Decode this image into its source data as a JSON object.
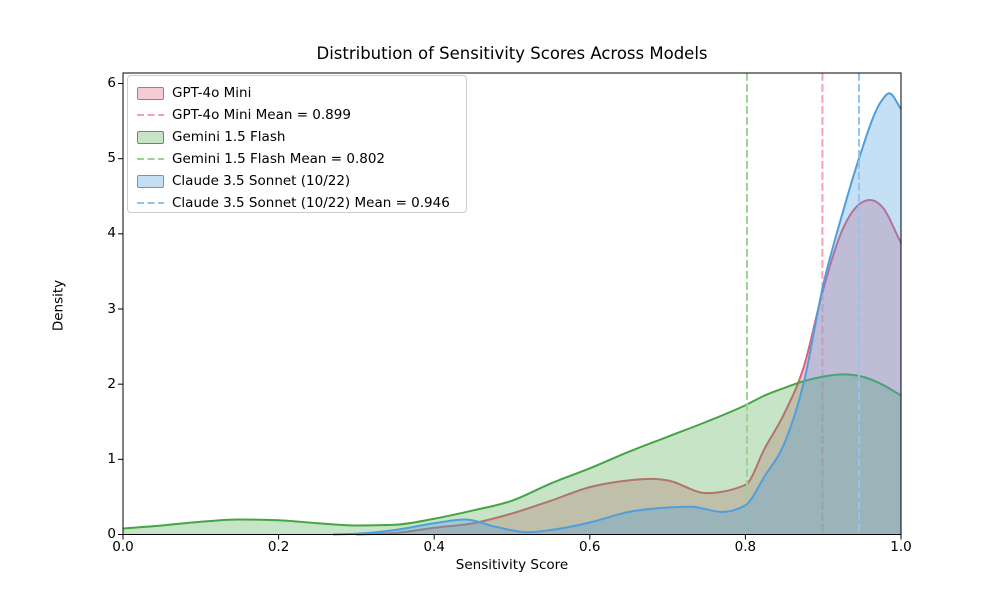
{
  "figure": {
    "title": "Distribution of Sensitivity Scores Across Models",
    "xlabel": "Sensitivity Score",
    "ylabel": "Density"
  },
  "chart_data": {
    "type": "area",
    "subtype": "kde-density",
    "title": "Distribution of Sensitivity Scores Across Models",
    "xlabel": "Sensitivity Score",
    "ylabel": "Density",
    "xlim": [
      0.0,
      1.0
    ],
    "ylim": [
      0.0,
      6.14
    ],
    "grid": false,
    "legend_position": "upper left",
    "xtick_values": [
      0.0,
      0.2,
      0.4,
      0.6,
      0.8,
      1.0
    ],
    "xtick_labels": [
      "0.0",
      "0.2",
      "0.4",
      "0.6",
      "0.8",
      "1.0"
    ],
    "ytick_values": [
      0,
      1,
      2,
      3,
      4,
      5,
      6
    ],
    "ytick_labels": [
      "0",
      "1",
      "2",
      "3",
      "4",
      "5",
      "6"
    ],
    "series": [
      {
        "id": "gpt-4o-mini",
        "name": "GPT-4o Mini",
        "mean": 0.899,
        "color": "#e0607a",
        "fill": "rgba(224,92,120,0.32)",
        "mean_color": "#f4a2b0",
        "x": [
          0.3,
          0.35,
          0.4,
          0.45,
          0.5,
          0.55,
          0.6,
          0.65,
          0.68,
          0.7,
          0.75,
          0.8,
          0.825,
          0.85,
          0.875,
          0.9,
          0.925,
          0.95,
          0.96,
          0.975,
          1.0
        ],
        "density": [
          0.0,
          0.02,
          0.09,
          0.15,
          0.28,
          0.45,
          0.63,
          0.72,
          0.74,
          0.72,
          0.55,
          0.66,
          1.15,
          1.61,
          2.23,
          3.26,
          4.06,
          4.42,
          4.45,
          4.37,
          3.88
        ]
      },
      {
        "id": "gemini-1-5-flash",
        "name": "Gemini 1.5 Flash",
        "mean": 0.802,
        "color": "#44a544",
        "fill": "rgba(68,165,68,0.30)",
        "mean_color": "#9ed194",
        "x": [
          0.0,
          0.05,
          0.1,
          0.15,
          0.2,
          0.25,
          0.3,
          0.35,
          0.4,
          0.45,
          0.5,
          0.55,
          0.6,
          0.65,
          0.7,
          0.75,
          0.8,
          0.825,
          0.85,
          0.875,
          0.9,
          0.925,
          0.95,
          0.975,
          1.0
        ],
        "density": [
          0.08,
          0.12,
          0.17,
          0.2,
          0.19,
          0.15,
          0.12,
          0.13,
          0.21,
          0.32,
          0.45,
          0.68,
          0.88,
          1.1,
          1.3,
          1.5,
          1.72,
          1.85,
          1.95,
          2.04,
          2.1,
          2.13,
          2.1,
          2.0,
          1.85
        ]
      },
      {
        "id": "claude-3-5-sonnet-10-22",
        "name": "Claude 3.5 Sonnet (10/22)",
        "mean": 0.946,
        "color": "#4f9edd",
        "fill": "rgba(79,158,221,0.33)",
        "mean_color": "#92c5ed",
        "x": [
          0.27,
          0.3,
          0.35,
          0.4,
          0.44,
          0.48,
          0.52,
          0.55,
          0.6,
          0.65,
          0.7,
          0.73,
          0.77,
          0.8,
          0.825,
          0.85,
          0.875,
          0.9,
          0.925,
          0.945,
          0.975,
          0.985,
          1.0
        ],
        "density": [
          0.0,
          0.01,
          0.06,
          0.15,
          0.2,
          0.1,
          0.03,
          0.06,
          0.16,
          0.3,
          0.36,
          0.37,
          0.3,
          0.39,
          0.78,
          1.21,
          2.02,
          3.32,
          4.28,
          4.97,
          5.77,
          5.87,
          5.66
        ]
      }
    ],
    "legend": [
      {
        "type": "patch",
        "series": 0,
        "label": "GPT-4o Mini"
      },
      {
        "type": "dash",
        "series": 0,
        "label": "GPT-4o Mini Mean = 0.899"
      },
      {
        "type": "patch",
        "series": 1,
        "label": "Gemini 1.5 Flash"
      },
      {
        "type": "dash",
        "series": 1,
        "label": "Gemini 1.5 Flash Mean = 0.802"
      },
      {
        "type": "patch",
        "series": 2,
        "label": "Claude 3.5 Sonnet (10/22)"
      },
      {
        "type": "dash",
        "series": 2,
        "label": "Claude 3.5 Sonnet (10/22) Mean = 0.946"
      }
    ]
  }
}
